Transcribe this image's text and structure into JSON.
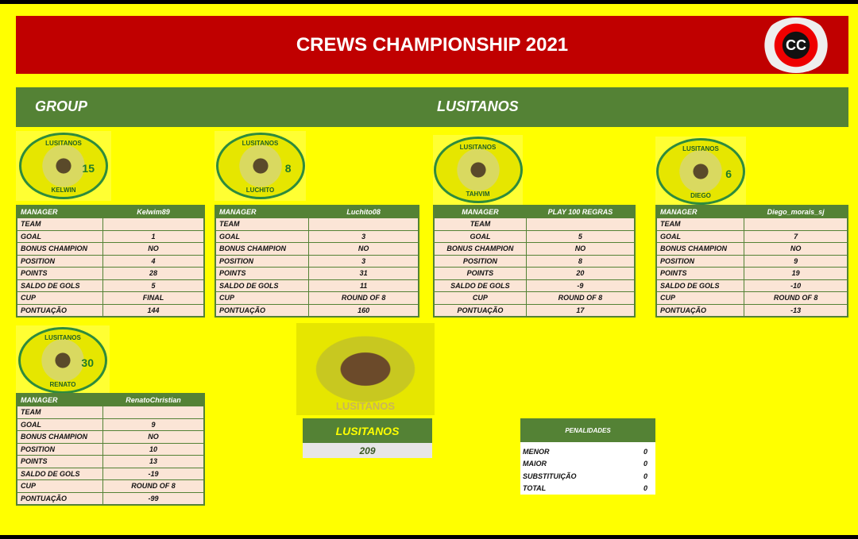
{
  "header": {
    "title": "CREWS CHAMPIONSHIP 2021",
    "logo_text": "CC"
  },
  "group": {
    "label": "GROUP",
    "name": "LUSITANOS"
  },
  "row_labels": [
    "TEAM",
    "GOAL",
    "BONUS CHAMPION",
    "POSITION",
    "POINTS",
    "SALDO DE GOLS",
    "CUP",
    "PONTUAÇÃO"
  ],
  "manager_label": "MANAGER",
  "players": [
    {
      "badge_title": "LUSITANOS",
      "badge_name": "KELWIN",
      "badge_number": "15",
      "manager": "Kelwim89",
      "values": [
        "",
        "1",
        "NO",
        "4",
        "28",
        "5",
        "FINAL",
        "144"
      ]
    },
    {
      "badge_title": "LUSITANOS",
      "badge_name": "LUCHITO",
      "badge_number": "8",
      "manager": "Luchito08",
      "values": [
        "",
        "3",
        "NO",
        "3",
        "31",
        "11",
        "ROUND OF 8",
        "160"
      ]
    },
    {
      "badge_title": "LUSITANOS",
      "badge_name": "TAHVIM",
      "badge_number": "",
      "manager": "PLAY 100 REGRAS",
      "values": [
        "",
        "5",
        "NO",
        "8",
        "20",
        "-9",
        "ROUND OF 8",
        "17"
      ]
    },
    {
      "badge_title": "LUSITANOS",
      "badge_name": "DIEGO",
      "badge_number": "6",
      "manager": "Diego_morais_sj",
      "values": [
        "",
        "7",
        "NO",
        "9",
        "19",
        "-10",
        "ROUND OF 8",
        "-13"
      ]
    },
    {
      "badge_title": "LUSITANOS",
      "badge_name": "RENATO",
      "badge_number": "30",
      "manager": "RenatoChristian",
      "values": [
        "",
        "9",
        "NO",
        "10",
        "13",
        "-19",
        "ROUND OF 8",
        "-99"
      ]
    }
  ],
  "team_logo_text": "LUSITANOS",
  "team_total": {
    "name": "LUSITANOS",
    "score": "209"
  },
  "penalties": {
    "title": "PENALIDADES",
    "rows": [
      {
        "label": "MENOR",
        "value": "0"
      },
      {
        "label": "MAIOR",
        "value": "0"
      },
      {
        "label": "SUBSTITUIÇÃO",
        "value": "0"
      },
      {
        "label": "TOTAL",
        "value": "0"
      }
    ]
  },
  "colors": {
    "background": "#ffff00",
    "title_bar": "#c00000",
    "green": "#548235",
    "cell": "#fbe5d6"
  }
}
